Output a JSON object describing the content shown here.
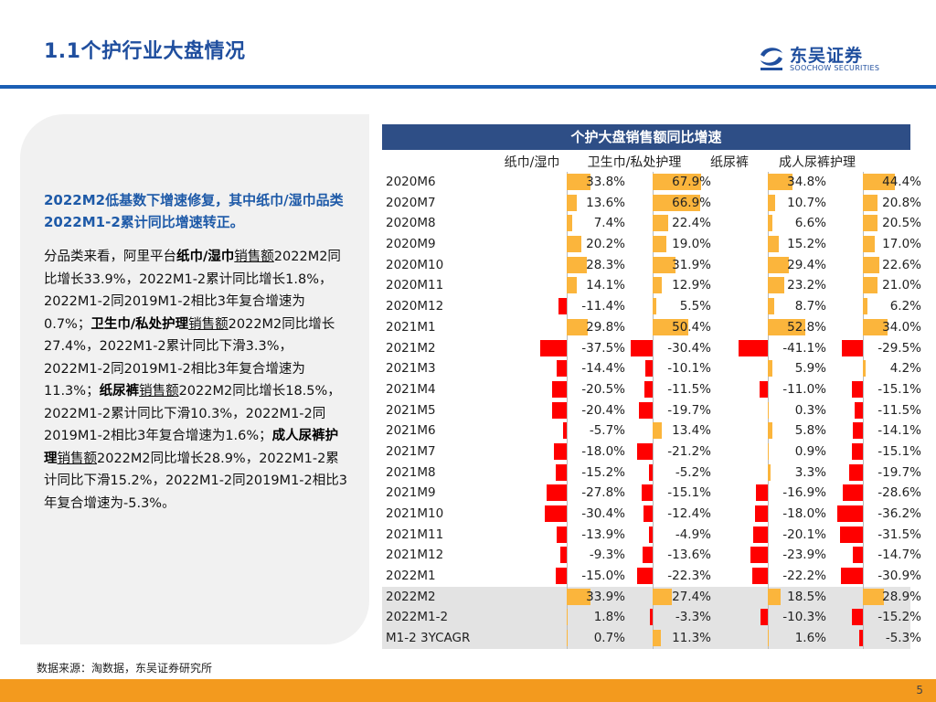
{
  "header": {
    "title": "1.1个护行业大盘情况",
    "logo_cn": "东吴证券",
    "logo_en": "SOOCHOW SECURITIES"
  },
  "left": {
    "lead": "2022M2低基数下增速修复，其中纸巾/湿巾品类2022M1-2累计同比增速转正。",
    "body": [
      {
        "t": "分品类来看，阿里平台"
      },
      {
        "t": "纸巾/湿巾",
        "b": true
      },
      {
        "t": "销售额",
        "u": true
      },
      {
        "t": "2022M2同比增长33.9%，2022M1-2累计同比增长1.8%，2022M1-2同2019M1-2相比3年复合增速为0.7%；"
      },
      {
        "t": "卫生巾/私处护理",
        "b": true
      },
      {
        "t": "销售额",
        "u": true
      },
      {
        "t": "2022M2同比增长27.4%，2022M1-2累计同比下滑3.3%，2022M1-2同2019M1-2相比3年复合增速为11.3%；"
      },
      {
        "t": "纸尿裤",
        "b": true
      },
      {
        "t": "销售额",
        "u": true
      },
      {
        "t": "2022M2同比增长18.5%，2022M1-2累计同比下滑10.3%，2022M1-2同2019M1-2相比3年复合增速为1.6%；"
      },
      {
        "t": "成人尿裤护理",
        "b": true
      },
      {
        "t": "销售额",
        "u": true
      },
      {
        "t": "2022M2同比增长28.9%，2022M1-2累计同比下滑15.2%，2022M1-2同2019M1-2相比3年复合增速为-5.3%。"
      }
    ]
  },
  "footer": {
    "source": "数据来源：淘数据，东吴证券研究所",
    "page": "5"
  },
  "colors": {
    "positive": "#fbb53c",
    "negative": "#ff0000",
    "header_bg": "#2e4e86",
    "accent": "#1f4e9e",
    "bottom_bar": "#f39a1e"
  },
  "table": {
    "title": "个护大盘销售额同比增速",
    "columns": [
      "纸巾/湿巾",
      "卫生巾/私处护理",
      "纸尿裤",
      "成人尿裤护理"
    ],
    "highlight_from": "2022M2",
    "rows": [
      {
        "label": "2020M6",
        "values": [
          33.8,
          67.9,
          34.8,
          44.4
        ]
      },
      {
        "label": "2020M7",
        "values": [
          13.6,
          66.9,
          10.7,
          20.8
        ]
      },
      {
        "label": "2020M8",
        "values": [
          7.4,
          22.4,
          6.6,
          20.5
        ]
      },
      {
        "label": "2020M9",
        "values": [
          20.2,
          19.0,
          15.2,
          17.0
        ]
      },
      {
        "label": "2020M10",
        "values": [
          28.3,
          31.9,
          29.4,
          22.6
        ]
      },
      {
        "label": "2020M11",
        "values": [
          14.1,
          12.9,
          23.2,
          21.0
        ]
      },
      {
        "label": "2020M12",
        "values": [
          -11.4,
          5.5,
          8.7,
          6.2
        ]
      },
      {
        "label": "2021M1",
        "values": [
          29.8,
          50.4,
          52.8,
          34.0
        ]
      },
      {
        "label": "2021M2",
        "values": [
          -37.5,
          -30.4,
          -41.1,
          -29.5
        ]
      },
      {
        "label": "2021M3",
        "values": [
          -14.4,
          -10.1,
          5.9,
          4.2
        ]
      },
      {
        "label": "2021M4",
        "values": [
          -20.5,
          -11.5,
          -11.0,
          -15.1
        ]
      },
      {
        "label": "2021M5",
        "values": [
          -20.4,
          -19.7,
          0.3,
          -11.5
        ]
      },
      {
        "label": "2021M6",
        "values": [
          -5.7,
          13.4,
          5.8,
          -14.1
        ]
      },
      {
        "label": "2021M7",
        "values": [
          -18.0,
          -21.2,
          0.9,
          -15.1
        ]
      },
      {
        "label": "2021M8",
        "values": [
          -15.2,
          -5.2,
          3.3,
          -19.7
        ]
      },
      {
        "label": "2021M9",
        "values": [
          -27.8,
          -15.1,
          -16.9,
          -28.6
        ]
      },
      {
        "label": "2021M10",
        "values": [
          -30.4,
          -12.4,
          -18.0,
          -36.2
        ]
      },
      {
        "label": "2021M11",
        "values": [
          -13.9,
          -4.9,
          -20.1,
          -31.5
        ]
      },
      {
        "label": "2021M12",
        "values": [
          -9.3,
          -13.6,
          -23.9,
          -14.7
        ]
      },
      {
        "label": "2022M1",
        "values": [
          -15.0,
          -22.3,
          -22.2,
          -30.9
        ]
      },
      {
        "label": "2022M2",
        "values": [
          33.9,
          27.4,
          18.5,
          28.9
        ]
      },
      {
        "label": "2022M1-2",
        "values": [
          1.8,
          -3.3,
          -10.3,
          -15.2
        ]
      },
      {
        "label": "M1-2 3YCAGR",
        "values": [
          0.7,
          11.3,
          1.6,
          -5.3
        ]
      }
    ]
  },
  "chart_data": {
    "type": "table",
    "title": "个护大盘销售额同比增速",
    "categories": [
      "2020M6",
      "2020M7",
      "2020M8",
      "2020M9",
      "2020M10",
      "2020M11",
      "2020M12",
      "2021M1",
      "2021M2",
      "2021M3",
      "2021M4",
      "2021M5",
      "2021M6",
      "2021M7",
      "2021M8",
      "2021M9",
      "2021M10",
      "2021M11",
      "2021M12",
      "2022M1",
      "2022M2",
      "2022M1-2",
      "M1-2 3YCAGR"
    ],
    "series": [
      {
        "name": "纸巾/湿巾",
        "values": [
          33.8,
          13.6,
          7.4,
          20.2,
          28.3,
          14.1,
          -11.4,
          29.8,
          -37.5,
          -14.4,
          -20.5,
          -20.4,
          -5.7,
          -18.0,
          -15.2,
          -27.8,
          -30.4,
          -13.9,
          -9.3,
          -15.0,
          33.9,
          1.8,
          0.7
        ]
      },
      {
        "name": "卫生巾/私处护理",
        "values": [
          67.9,
          66.9,
          22.4,
          19.0,
          31.9,
          12.9,
          5.5,
          50.4,
          -30.4,
          -10.1,
          -11.5,
          -19.7,
          13.4,
          -21.2,
          -5.2,
          -15.1,
          -12.4,
          -4.9,
          -13.6,
          -22.3,
          27.4,
          -3.3,
          11.3
        ]
      },
      {
        "name": "纸尿裤",
        "values": [
          34.8,
          10.7,
          6.6,
          15.2,
          29.4,
          23.2,
          8.7,
          52.8,
          -41.1,
          5.9,
          -11.0,
          0.3,
          5.8,
          0.9,
          3.3,
          -16.9,
          -18.0,
          -20.1,
          -23.9,
          -22.2,
          18.5,
          -10.3,
          1.6
        ]
      },
      {
        "name": "成人尿裤护理",
        "values": [
          44.4,
          20.8,
          20.5,
          17.0,
          22.6,
          21.0,
          6.2,
          34.0,
          -29.5,
          4.2,
          -15.1,
          -11.5,
          -14.1,
          -15.1,
          -19.7,
          -28.6,
          -36.2,
          -31.5,
          -14.7,
          -30.9,
          28.9,
          -15.2,
          -5.3
        ]
      }
    ]
  }
}
